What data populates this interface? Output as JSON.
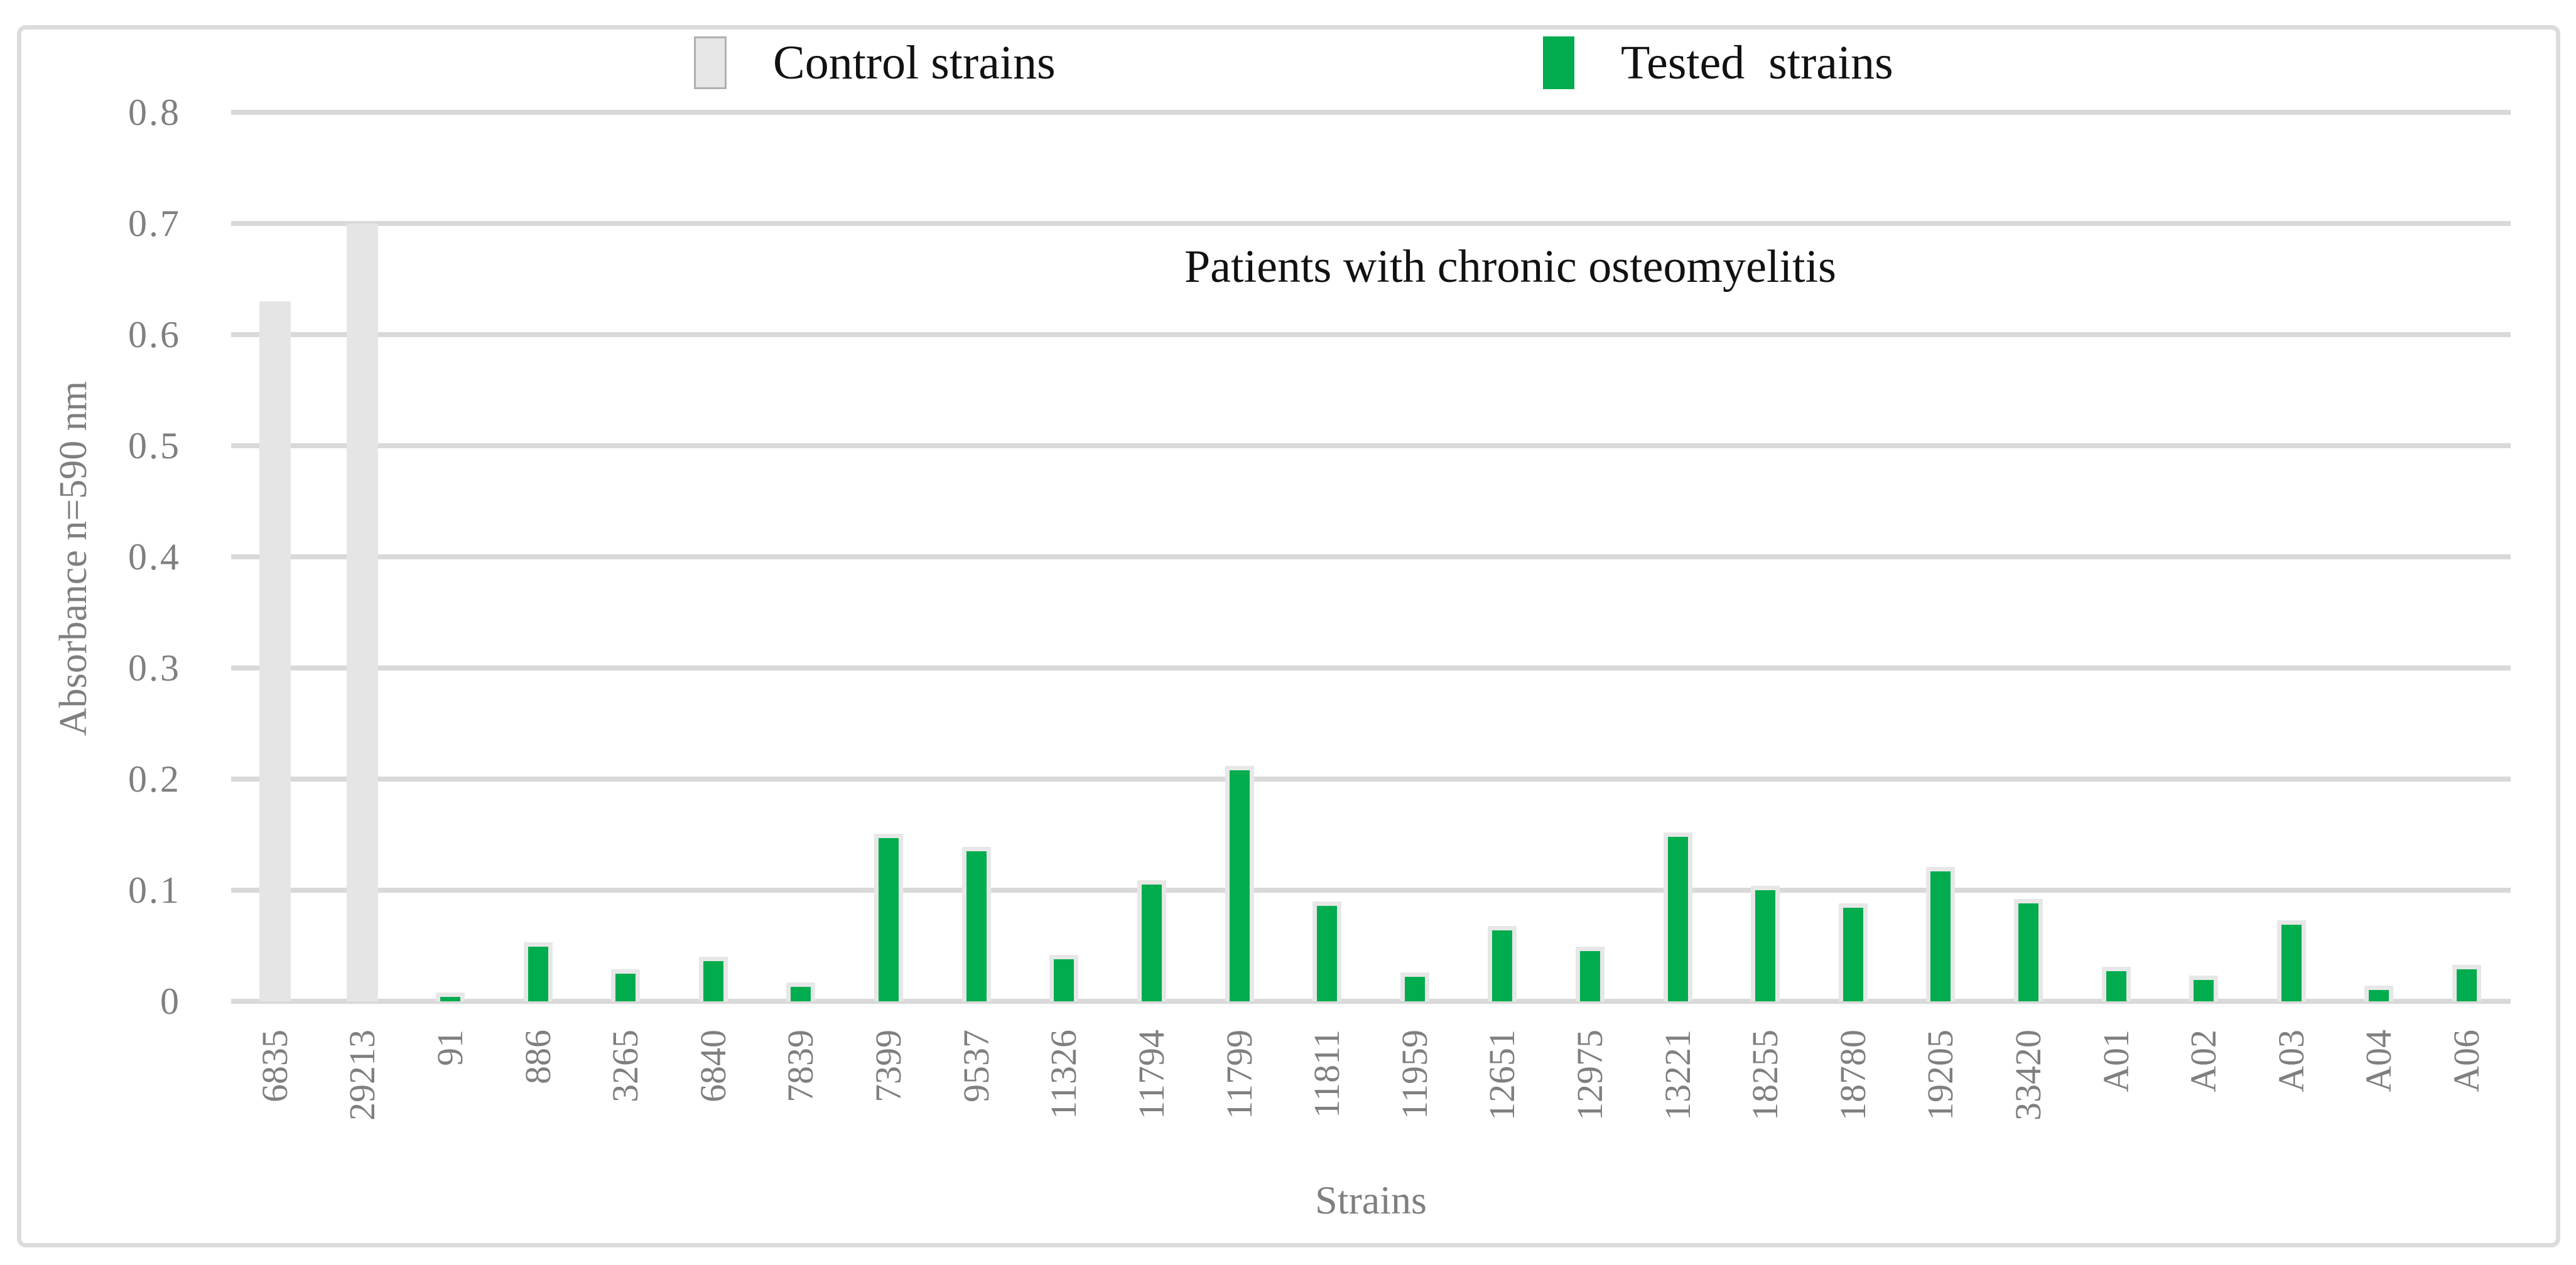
{
  "figure": {
    "title": "Patients with chronic osteomyelitis",
    "legend": [
      {
        "label": "Control strains",
        "color": "#e6e6e6",
        "border_color": "#b0b0b0",
        "key": "control"
      },
      {
        "label": "Tested  strains",
        "color": "#00ac4d",
        "border_color": null,
        "key": "tested"
      }
    ],
    "y_axis": {
      "title": "Absorbance n=590 nm",
      "tick_labels": [
        "0.8",
        "0.7",
        "0.6",
        "0.5",
        "0.4",
        "0.3",
        "0.2",
        "0.1",
        "0"
      ]
    },
    "x_axis": {
      "title": "Strains"
    },
    "colors": {
      "tested_bar": "#00ac4d",
      "control_bar": "#e5e5e5",
      "bar_outline": "#e7e7e7",
      "gridline": "#d9d9d9",
      "axis_text": "#7f7f7f",
      "title_text": "#111111"
    }
  },
  "chart_data": {
    "type": "bar",
    "title": "Patients with chronic osteomyelitis",
    "xlabel": "Strains",
    "ylabel": "Absorbance n=590 nm",
    "ylim": [
      0,
      0.8
    ],
    "yticks": [
      0.8,
      0.7,
      0.6,
      0.5,
      0.4,
      0.3,
      0.2,
      0.1,
      0
    ],
    "grid": true,
    "legend_position": "top",
    "categories": [
      "6835",
      "29213",
      "91",
      "886",
      "3265",
      "6840",
      "7839",
      "7399",
      "9537",
      "11326",
      "11794",
      "11799",
      "11811",
      "11959",
      "12651",
      "12975",
      "13221",
      "18255",
      "18780",
      "19205",
      "33420",
      "A01",
      "A02",
      "A03",
      "A04",
      "A06"
    ],
    "points": [
      {
        "label": "6835",
        "group": "control",
        "value": 0.63
      },
      {
        "label": "29213",
        "group": "control",
        "value": 0.7
      },
      {
        "label": "91",
        "group": "tested",
        "value": 0.004
      },
      {
        "label": "886",
        "group": "tested",
        "value": 0.049
      },
      {
        "label": "3265",
        "group": "tested",
        "value": 0.025
      },
      {
        "label": "6840",
        "group": "tested",
        "value": 0.036
      },
      {
        "label": "7839",
        "group": "tested",
        "value": 0.013
      },
      {
        "label": "7399",
        "group": "tested",
        "value": 0.147
      },
      {
        "label": "9537",
        "group": "tested",
        "value": 0.135
      },
      {
        "label": "11326",
        "group": "tested",
        "value": 0.038
      },
      {
        "label": "11794",
        "group": "tested",
        "value": 0.105
      },
      {
        "label": "11799",
        "group": "tested",
        "value": 0.208
      },
      {
        "label": "11811",
        "group": "tested",
        "value": 0.086
      },
      {
        "label": "11959",
        "group": "tested",
        "value": 0.022
      },
      {
        "label": "12651",
        "group": "tested",
        "value": 0.064
      },
      {
        "label": "12975",
        "group": "tested",
        "value": 0.045
      },
      {
        "label": "13221",
        "group": "tested",
        "value": 0.148
      },
      {
        "label": "18255",
        "group": "tested",
        "value": 0.1
      },
      {
        "label": "18780",
        "group": "tested",
        "value": 0.084
      },
      {
        "label": "19205",
        "group": "tested",
        "value": 0.117
      },
      {
        "label": "33420",
        "group": "tested",
        "value": 0.088
      },
      {
        "label": "A01",
        "group": "tested",
        "value": 0.027
      },
      {
        "label": "A02",
        "group": "tested",
        "value": 0.019
      },
      {
        "label": "A03",
        "group": "tested",
        "value": 0.069
      },
      {
        "label": "A04",
        "group": "tested",
        "value": 0.01
      },
      {
        "label": "A06",
        "group": "tested",
        "value": 0.029
      }
    ],
    "series": [
      {
        "name": "Control strains",
        "color": "#e6e6e6",
        "values": [
          0.63,
          0.7,
          null,
          null,
          null,
          null,
          null,
          null,
          null,
          null,
          null,
          null,
          null,
          null,
          null,
          null,
          null,
          null,
          null,
          null,
          null,
          null,
          null,
          null,
          null,
          null
        ]
      },
      {
        "name": "Tested strains",
        "color": "#00ac4d",
        "values": [
          null,
          null,
          0.004,
          0.049,
          0.025,
          0.036,
          0.013,
          0.147,
          0.135,
          0.038,
          0.105,
          0.208,
          0.086,
          0.022,
          0.064,
          0.045,
          0.148,
          0.1,
          0.084,
          0.117,
          0.088,
          0.027,
          0.019,
          0.069,
          0.01,
          0.029
        ]
      }
    ]
  }
}
